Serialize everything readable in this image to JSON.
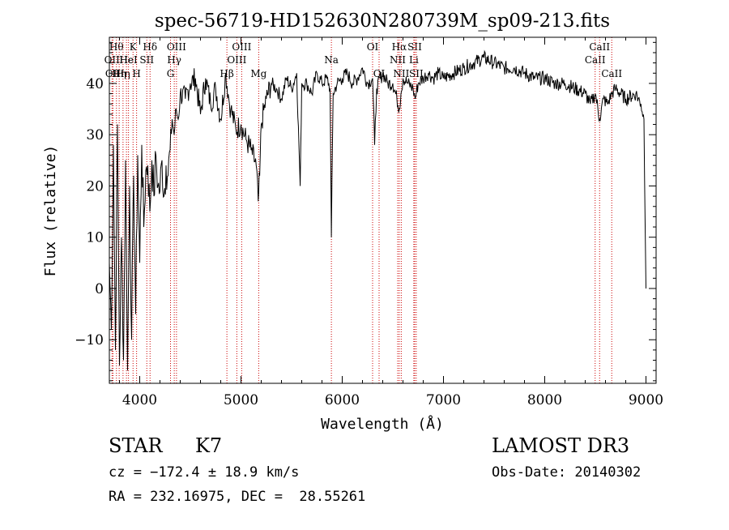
{
  "chart_data": {
    "type": "line",
    "title": "spec-56719-HD152630N280739M_sp09-213.fits",
    "xlabel": "Wavelength (Å)",
    "ylabel": "Flux (relative)",
    "xlim": [
      3700,
      9100
    ],
    "ylim": [
      -18.5,
      49
    ],
    "xticks": [
      4000,
      5000,
      6000,
      7000,
      8000,
      9000
    ],
    "yticks": [
      -10,
      0,
      10,
      20,
      30,
      40
    ],
    "grid": false,
    "line_color": "#000000",
    "marker_color": "#cc0000",
    "series": [
      {
        "x": [
          3700,
          3720,
          3740,
          3760,
          3780,
          3800,
          3820,
          3840,
          3860,
          3880,
          3900,
          3920,
          3940,
          3960,
          3980,
          4000,
          4020,
          4040,
          4060,
          4080,
          4100,
          4120,
          4140,
          4160,
          4180,
          4200,
          4220,
          4240,
          4260,
          4280,
          4300,
          4320,
          4340,
          4360,
          4380,
          4400,
          4450,
          4500,
          4550,
          4600,
          4650,
          4700,
          4750,
          4800,
          4850,
          4880,
          4900,
          4950,
          5000,
          5050,
          5100,
          5150,
          5170,
          5185,
          5200,
          5250,
          5300,
          5350,
          5400,
          5450,
          5500,
          5550,
          5585,
          5600,
          5650,
          5700,
          5750,
          5800,
          5850,
          5880,
          5893,
          5910,
          5950,
          6000,
          6050,
          6100,
          6150,
          6200,
          6250,
          6300,
          6320,
          6340,
          6400,
          6450,
          6500,
          6540,
          6563,
          6580,
          6600,
          6650,
          6700,
          6720,
          6750,
          6800,
          6850,
          6900,
          6950,
          7000,
          7100,
          7200,
          7300,
          7400,
          7500,
          7600,
          7700,
          7800,
          7900,
          8000,
          8100,
          8200,
          8300,
          8400,
          8450,
          8500,
          8542,
          8580,
          8620,
          8662,
          8700,
          8800,
          8900,
          8950,
          8980,
          9000
        ],
        "values": [
          5,
          -8,
          28,
          -12,
          32,
          -15,
          10,
          -14,
          25,
          -16,
          20,
          -10,
          22,
          -5,
          26,
          5,
          28,
          12,
          23,
          24,
          15,
          25,
          18,
          26,
          20,
          19,
          25,
          18,
          24,
          22,
          27,
          33,
          30,
          35,
          33,
          38,
          37,
          40,
          41,
          34,
          41,
          36,
          39,
          33,
          42,
          37,
          35,
          31,
          32,
          29,
          27,
          24,
          17,
          22,
          32,
          37,
          40,
          39,
          37,
          41,
          39,
          42,
          20,
          40,
          40,
          38,
          42,
          40,
          41,
          39,
          10,
          38,
          40,
          41,
          42,
          40,
          41,
          43,
          40,
          41,
          28,
          39,
          42,
          40,
          40,
          37,
          35,
          38,
          41,
          40,
          39,
          37,
          40,
          41,
          42,
          41,
          42,
          41,
          42,
          43,
          44,
          45,
          44,
          43,
          43,
          42,
          41,
          41,
          40,
          40,
          39,
          38,
          36,
          38,
          33,
          37,
          36,
          38,
          39,
          37,
          38,
          36,
          33,
          0
        ]
      }
    ],
    "lines": [
      {
        "x": 3726,
        "label": "OII",
        "row": 2
      },
      {
        "x": 3736,
        "label": "OII",
        "row": 3
      },
      {
        "x": 3770,
        "label": "Hθ",
        "row": 1
      },
      {
        "x": 3797,
        "label": "Hη",
        "row": 3
      },
      {
        "x": 3835,
        "label": "Hη",
        "row": 3
      },
      {
        "x": 3869,
        "label": "He",
        "row": 2
      },
      {
        "x": 3889,
        "label": "HeI",
        "row": 2
      },
      {
        "x": 3934,
        "label": "K",
        "row": 1
      },
      {
        "x": 3969,
        "label": "H",
        "row": 3
      },
      {
        "x": 4070,
        "label": "SII",
        "row": 2
      },
      {
        "x": 4102,
        "label": "Hδ",
        "row": 1
      },
      {
        "x": 4304,
        "label": "G",
        "row": 3
      },
      {
        "x": 4341,
        "label": "Hγ",
        "row": 2
      },
      {
        "x": 4363,
        "label": "OIII",
        "row": 1
      },
      {
        "x": 4861,
        "label": "Hβ",
        "row": 3
      },
      {
        "x": 4959,
        "label": "OIII",
        "row": 2
      },
      {
        "x": 5007,
        "label": "OIII",
        "row": 1
      },
      {
        "x": 5175,
        "label": "Mg",
        "row": 3
      },
      {
        "x": 5893,
        "label": "Na",
        "row": 2
      },
      {
        "x": 6300,
        "label": "OI",
        "row": 1
      },
      {
        "x": 6364,
        "label": "OI",
        "row": 3
      },
      {
        "x": 6548,
        "label": "NII",
        "row": 2
      },
      {
        "x": 6563,
        "label": "Hα",
        "row": 1
      },
      {
        "x": 6583,
        "label": "NII",
        "row": 3
      },
      {
        "x": 6707,
        "label": "Li",
        "row": 2
      },
      {
        "x": 6716,
        "label": "SII",
        "row": 1
      },
      {
        "x": 6731,
        "label": "SII",
        "row": 3
      },
      {
        "x": 8498,
        "label": "CaII",
        "row": 2
      },
      {
        "x": 8542,
        "label": "CaII",
        "row": 1
      },
      {
        "x": 8662,
        "label": "CaII",
        "row": 3
      }
    ]
  },
  "info": {
    "object_type": "STAR",
    "subclass": "K7",
    "redshift": "cz = −172.4 ± 18.9 km/s",
    "coords": "RA = 232.16975, DEC =  28.55261",
    "survey": "LAMOST DR3",
    "obs_date": "Obs-Date: 20140302"
  }
}
